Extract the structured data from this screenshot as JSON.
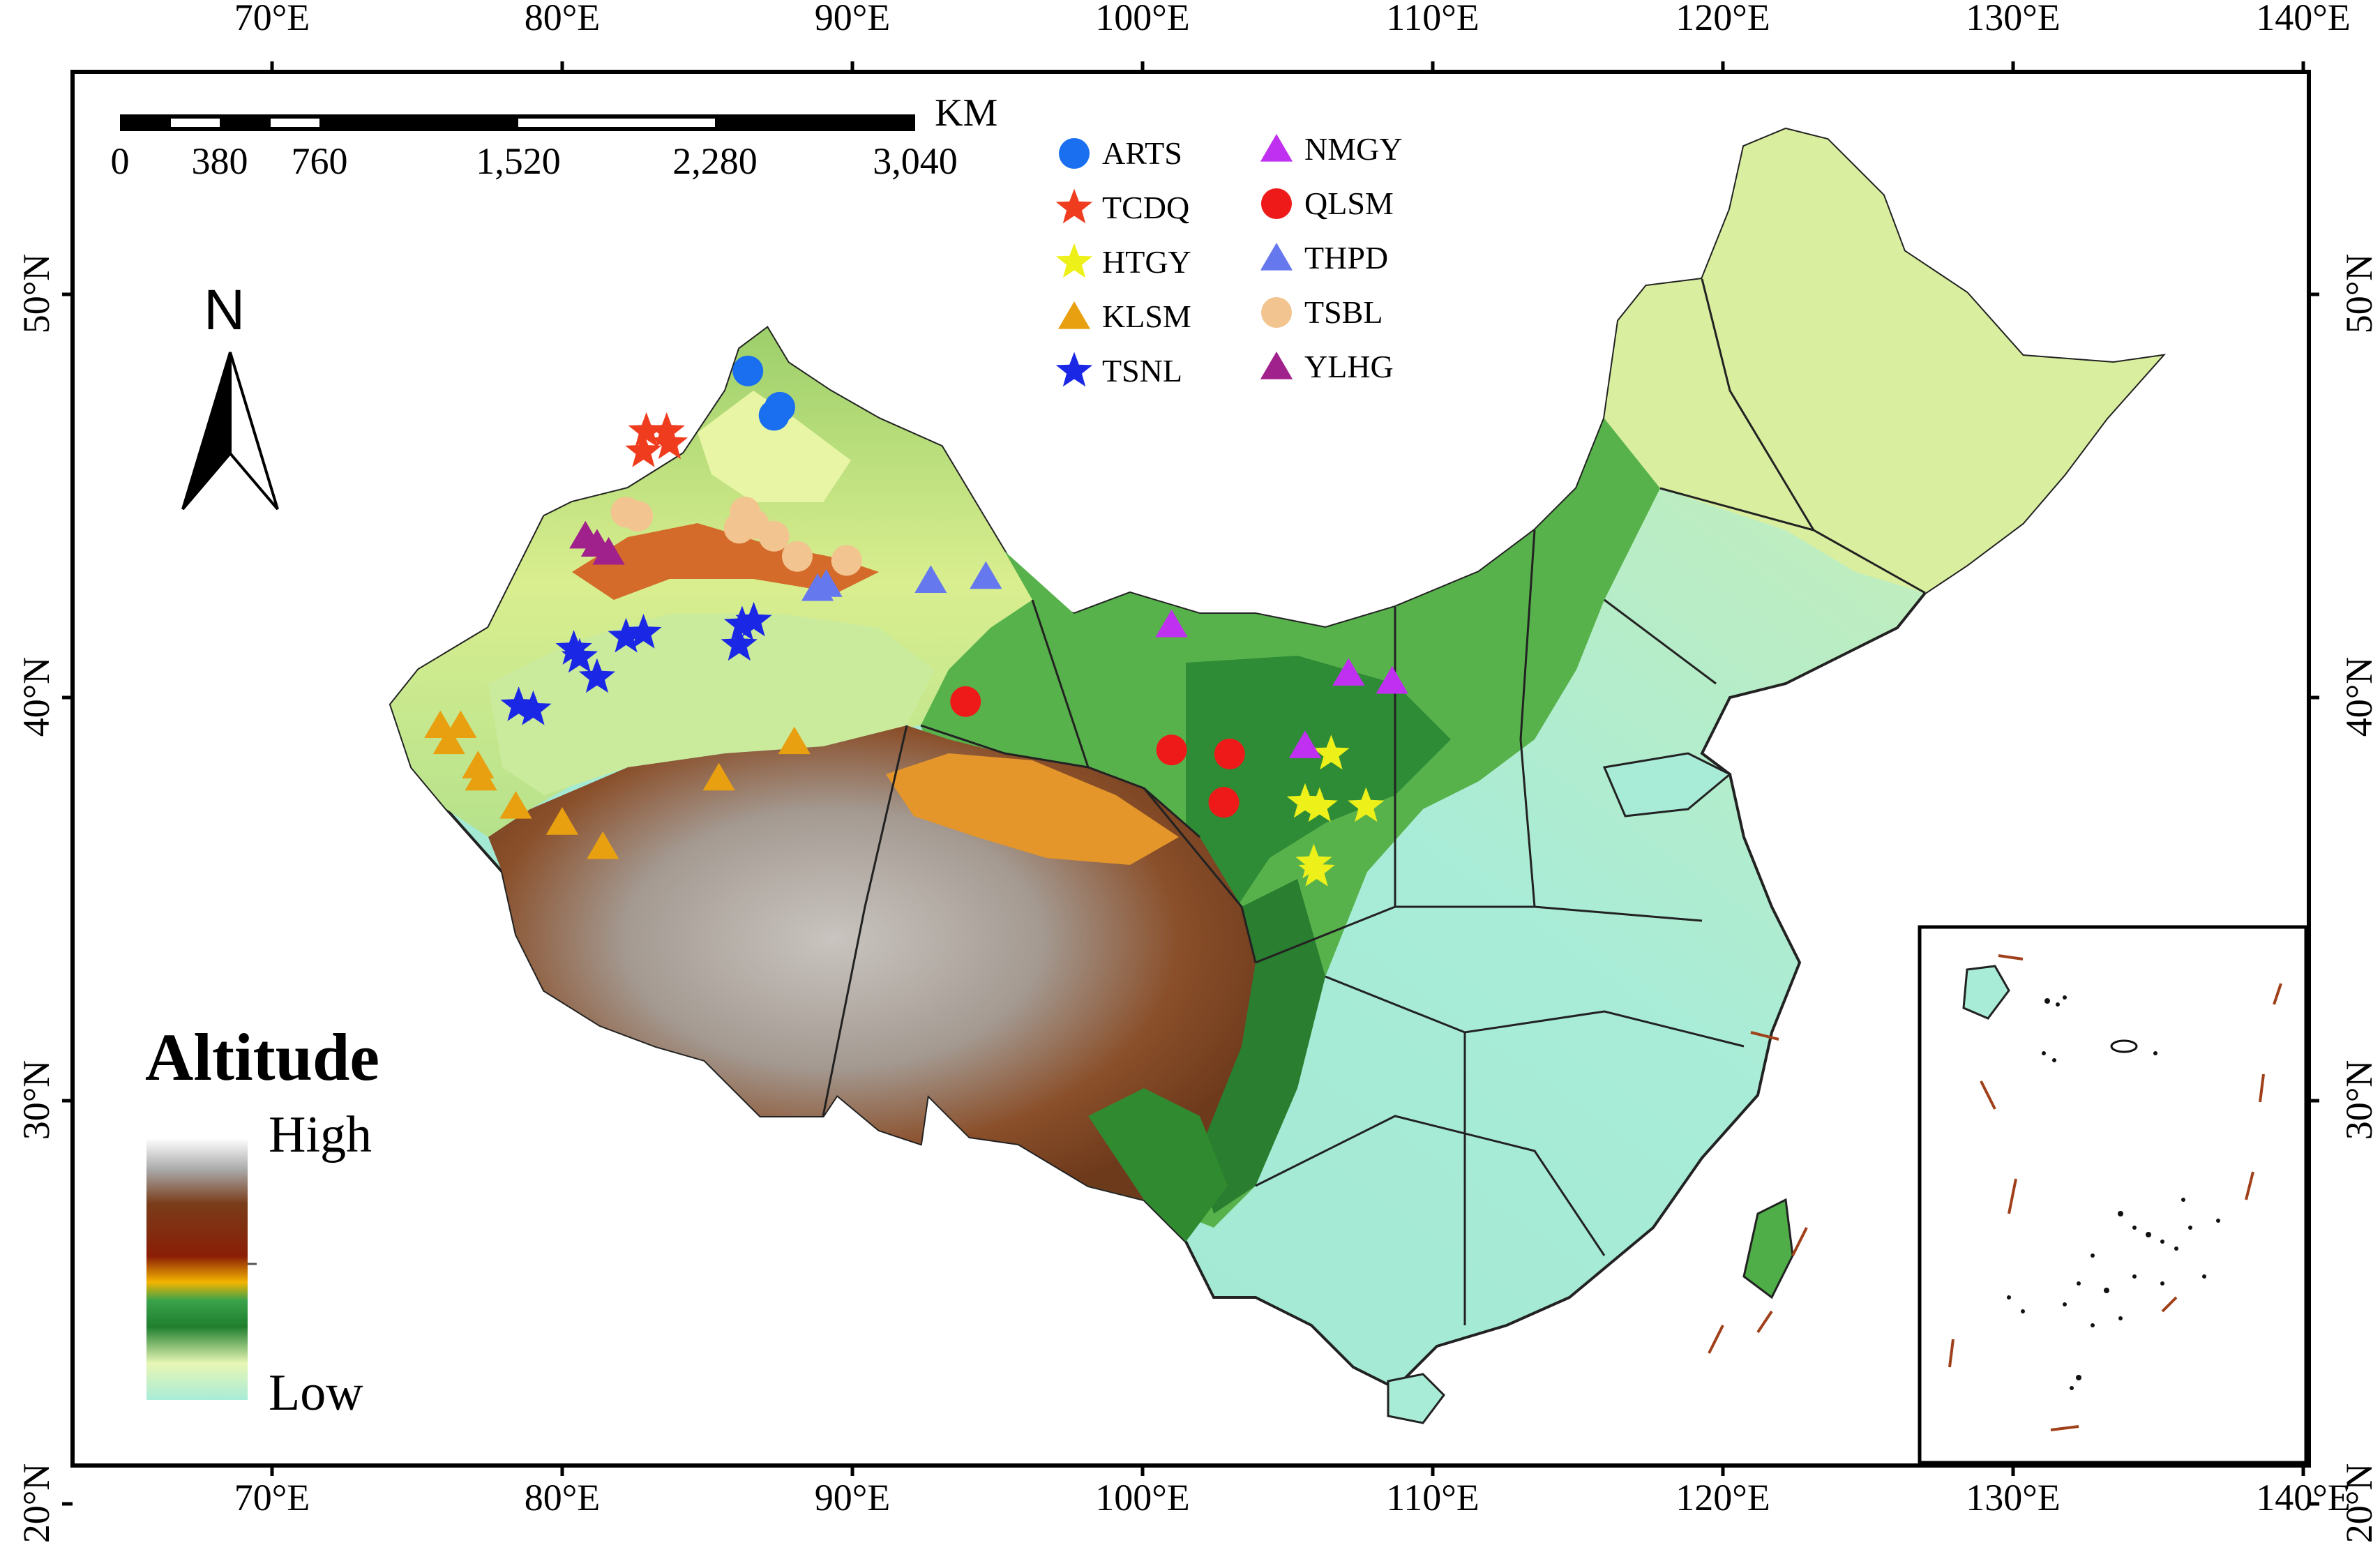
{
  "map": {
    "longitude_ticks": [
      "70°E",
      "80°E",
      "90°E",
      "100°E",
      "110°E",
      "120°E",
      "130°E",
      "140°E"
    ],
    "latitude_ticks": [
      "50°N",
      "40°N",
      "30°N",
      "20°N"
    ],
    "scale_bar": {
      "unit": "KM",
      "labels": [
        "0",
        "380",
        "760",
        "1,520",
        "2,280",
        "3,040"
      ]
    },
    "north_arrow": {
      "label": "N",
      "icon": "north-arrow-icon"
    },
    "altitude_legend": {
      "title": "Altitude",
      "high_label": "High",
      "low_label": "Low",
      "gradient": [
        "#ffffff",
        "#a7a7a7",
        "#7a3a18",
        "#8a1e06",
        "#f4b400",
        "#3aa34a",
        "#1f7f2e",
        "#e8f6b5",
        "#a8ecd8"
      ]
    },
    "legend": [
      {
        "label": "ARTS",
        "shape": "circle",
        "color": "#1a6ff0"
      },
      {
        "label": "TCDQ",
        "shape": "star",
        "color": "#f03c1e"
      },
      {
        "label": "HTGY",
        "shape": "star",
        "color": "#eef01a"
      },
      {
        "label": "KLSM",
        "shape": "triangle",
        "color": "#e8a010"
      },
      {
        "label": "TSNL",
        "shape": "star",
        "color": "#1a28e6"
      },
      {
        "label": "NMGY",
        "shape": "triangle",
        "color": "#c030f0"
      },
      {
        "label": "QLSM",
        "shape": "circle",
        "color": "#ee1a1a"
      },
      {
        "label": "THPD",
        "shape": "triangle",
        "color": "#6678ee"
      },
      {
        "label": "TSBL",
        "shape": "circle",
        "color": "#f2c490"
      },
      {
        "label": "YLHG",
        "shape": "triangle",
        "color": "#a0208c"
      }
    ],
    "sites": {
      "ARTS": [
        [
          86.4,
          48.1
        ],
        [
          87.5,
          47.2
        ],
        [
          87.3,
          47.0
        ]
      ],
      "TCDQ": [
        [
          82.9,
          46.6
        ],
        [
          83.6,
          46.6
        ],
        [
          83.7,
          46.3
        ],
        [
          82.8,
          46.1
        ]
      ],
      "HTGY": [
        [
          106.5,
          38.6
        ],
        [
          105.6,
          37.4
        ],
        [
          106.1,
          37.3
        ],
        [
          107.7,
          37.3
        ],
        [
          105.9,
          35.9
        ],
        [
          106.0,
          35.7
        ]
      ],
      "KLSM": [
        [
          75.8,
          39.3
        ],
        [
          76.5,
          39.3
        ],
        [
          76.1,
          38.9
        ],
        [
          77.1,
          38.3
        ],
        [
          77.2,
          38.0
        ],
        [
          78.4,
          37.3
        ],
        [
          80.0,
          36.9
        ],
        [
          81.4,
          36.3
        ],
        [
          85.4,
          38.0
        ],
        [
          88.0,
          38.9
        ]
      ],
      "TSNL": [
        [
          86.2,
          41.8
        ],
        [
          86.6,
          41.9
        ],
        [
          86.1,
          41.3
        ],
        [
          82.2,
          41.5
        ],
        [
          82.8,
          41.6
        ],
        [
          80.4,
          41.2
        ],
        [
          80.6,
          41.0
        ],
        [
          81.2,
          40.5
        ],
        [
          78.5,
          39.8
        ],
        [
          79.0,
          39.7
        ]
      ],
      "NMGY": [
        [
          101.0,
          41.8
        ],
        [
          107.1,
          40.6
        ],
        [
          108.6,
          40.4
        ],
        [
          105.6,
          38.8
        ]
      ],
      "QLSM": [
        [
          93.9,
          39.9
        ],
        [
          101.0,
          38.7
        ],
        [
          103.0,
          38.6
        ],
        [
          102.8,
          37.4
        ]
      ],
      "THPD": [
        [
          88.8,
          42.7
        ],
        [
          89.1,
          42.8
        ],
        [
          92.7,
          42.9
        ],
        [
          94.6,
          43.0
        ]
      ],
      "TSBL": [
        [
          82.2,
          44.6
        ],
        [
          82.6,
          44.5
        ],
        [
          86.3,
          44.6
        ],
        [
          86.6,
          44.3
        ],
        [
          86.1,
          44.2
        ],
        [
          87.3,
          44.0
        ],
        [
          88.1,
          43.5
        ],
        [
          89.8,
          43.4
        ]
      ],
      "YLHG": [
        [
          80.8,
          44.0
        ],
        [
          81.2,
          43.8
        ],
        [
          81.6,
          43.6
        ]
      ]
    },
    "colors": {
      "frame": "#000000",
      "china_lowland": "#a8ecd8",
      "china_plain": "#e4f4b0",
      "china_green": "#55b04a",
      "china_darkgreen": "#1f7a2c",
      "plateau_brown": "#8a4a22",
      "plateau_gray": "#b5b1ac",
      "basin_orange": "#e89a26",
      "province_border": "#222222"
    }
  }
}
